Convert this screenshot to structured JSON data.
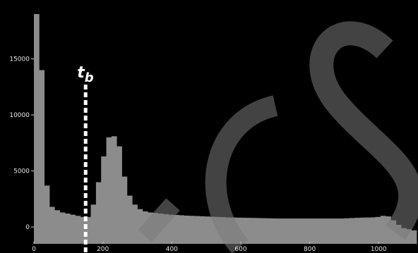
{
  "chart_data": {
    "type": "bar",
    "title": "",
    "xlabel": "",
    "ylabel": "",
    "xlim": [
      0,
      1110
    ],
    "ylim": [
      -1500,
      19500
    ],
    "bin_width": 15,
    "x_ticks": [
      0,
      200,
      400,
      600,
      800,
      1000
    ],
    "y_ticks": [
      0,
      5000,
      10000,
      15000
    ],
    "grid": false,
    "legend": "none",
    "colors": {
      "background": "#000000",
      "bars": "#8c8c8c",
      "marker": "#ffffff",
      "watermark": "#7a7a7a"
    },
    "markers": [
      {
        "label_base": "t",
        "label_sub": "b",
        "x": 150,
        "style": "dashed-vertical"
      }
    ],
    "x": [
      0,
      15,
      30,
      45,
      60,
      75,
      90,
      105,
      120,
      135,
      150,
      165,
      180,
      195,
      210,
      225,
      240,
      255,
      270,
      285,
      300,
      315,
      330,
      345,
      360,
      375,
      390,
      405,
      420,
      435,
      450,
      465,
      480,
      495,
      510,
      525,
      540,
      555,
      570,
      585,
      600,
      615,
      630,
      645,
      660,
      675,
      690,
      705,
      720,
      735,
      750,
      765,
      780,
      795,
      810,
      825,
      840,
      855,
      870,
      885,
      900,
      915,
      930,
      945,
      960,
      975,
      990,
      1005,
      1020,
      1035,
      1050,
      1065,
      1080,
      1095
    ],
    "values": [
      19000,
      14000,
      3700,
      1800,
      1500,
      1300,
      1200,
      1100,
      1000,
      900,
      900,
      2000,
      4000,
      6300,
      8000,
      8100,
      7200,
      4500,
      2800,
      2000,
      1600,
      1400,
      1300,
      1250,
      1200,
      1150,
      1100,
      1080,
      1050,
      1020,
      1000,
      980,
      960,
      940,
      920,
      900,
      880,
      860,
      850,
      840,
      830,
      820,
      810,
      800,
      790,
      780,
      770,
      760,
      760,
      760,
      760,
      760,
      760,
      760,
      760,
      760,
      760,
      760,
      760,
      760,
      780,
      800,
      820,
      840,
      850,
      860,
      900,
      1000,
      950,
      600,
      200,
      -100,
      -200,
      -300
    ]
  }
}
